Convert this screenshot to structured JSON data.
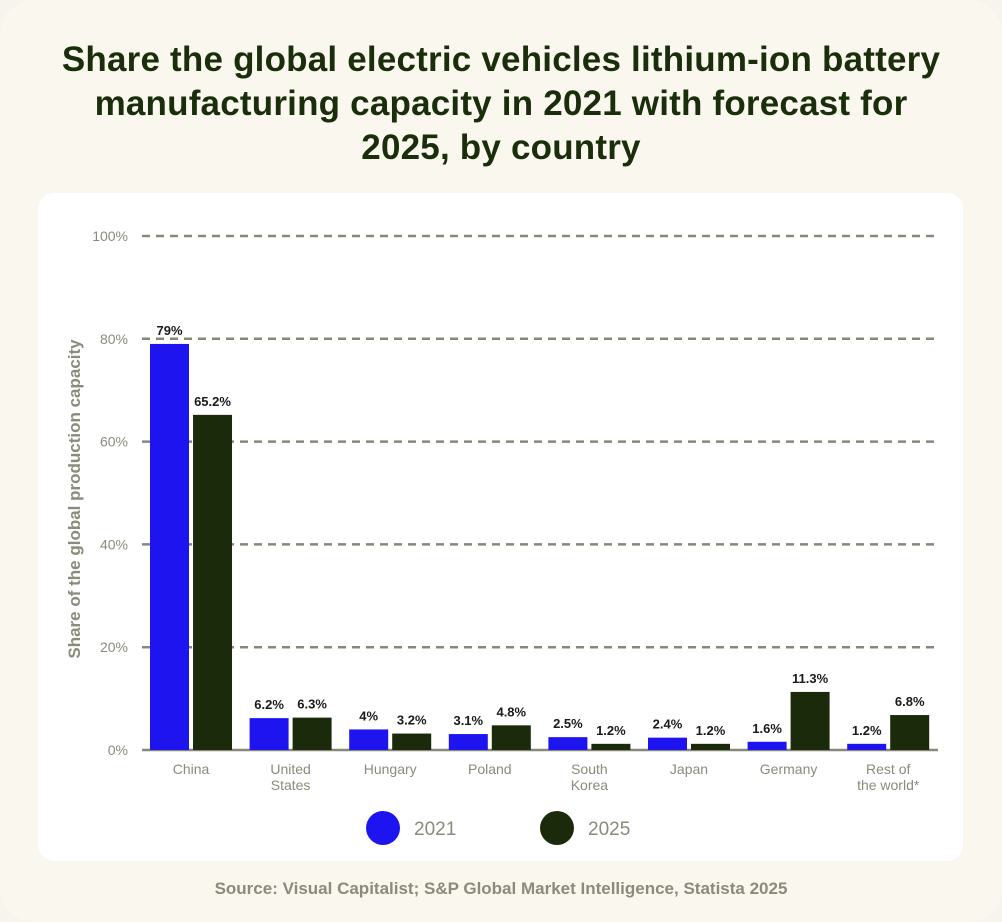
{
  "title": "Share the global electric vehicles lithium-ion battery manufacturing capacity in 2021 with forecast for 2025, by country",
  "source": "Source: Visual Capitalist; S&P Global Market Intelligence, Statista 2025",
  "colors": {
    "series_2021": "#1e14f0",
    "series_2025": "#1b2a0a",
    "grid": "#888878",
    "axis_text": "#8a8b7a",
    "label_text": "#1a1a1a"
  },
  "chart_data": {
    "type": "bar",
    "title": "Share the global electric vehicles lithium-ion battery manufacturing capacity in 2021 with forecast for 2025, by country",
    "xlabel": "",
    "ylabel": "Share of the global production capacity",
    "ylim": [
      0,
      100
    ],
    "yticks": [
      0,
      20,
      40,
      60,
      80,
      100
    ],
    "ytick_labels": [
      "0%",
      "20%",
      "40%",
      "60%",
      "80%",
      "100%"
    ],
    "grid": true,
    "legend_position": "bottom-center",
    "categories": [
      [
        "China"
      ],
      [
        "United",
        "States"
      ],
      [
        "Hungary"
      ],
      [
        "Poland"
      ],
      [
        "South",
        "Korea"
      ],
      [
        "Japan"
      ],
      [
        "Germany"
      ],
      [
        "Rest of",
        "the world*"
      ]
    ],
    "series": [
      {
        "name": "2021",
        "values": [
          79,
          6.2,
          4,
          3.1,
          2.5,
          2.4,
          1.6,
          1.2
        ],
        "labels": [
          "79%",
          "6.2%",
          "4%",
          "3.1%",
          "2.5%",
          "2.4%",
          "1.6%",
          "1.2%"
        ]
      },
      {
        "name": "2025",
        "values": [
          65.2,
          6.3,
          3.2,
          4.8,
          1.2,
          1.2,
          11.3,
          6.8
        ],
        "labels": [
          "65.2%",
          "6.3%",
          "3.2%",
          "4.8%",
          "1.2%",
          "1.2%",
          "11.3%",
          "6.8%"
        ]
      }
    ]
  }
}
